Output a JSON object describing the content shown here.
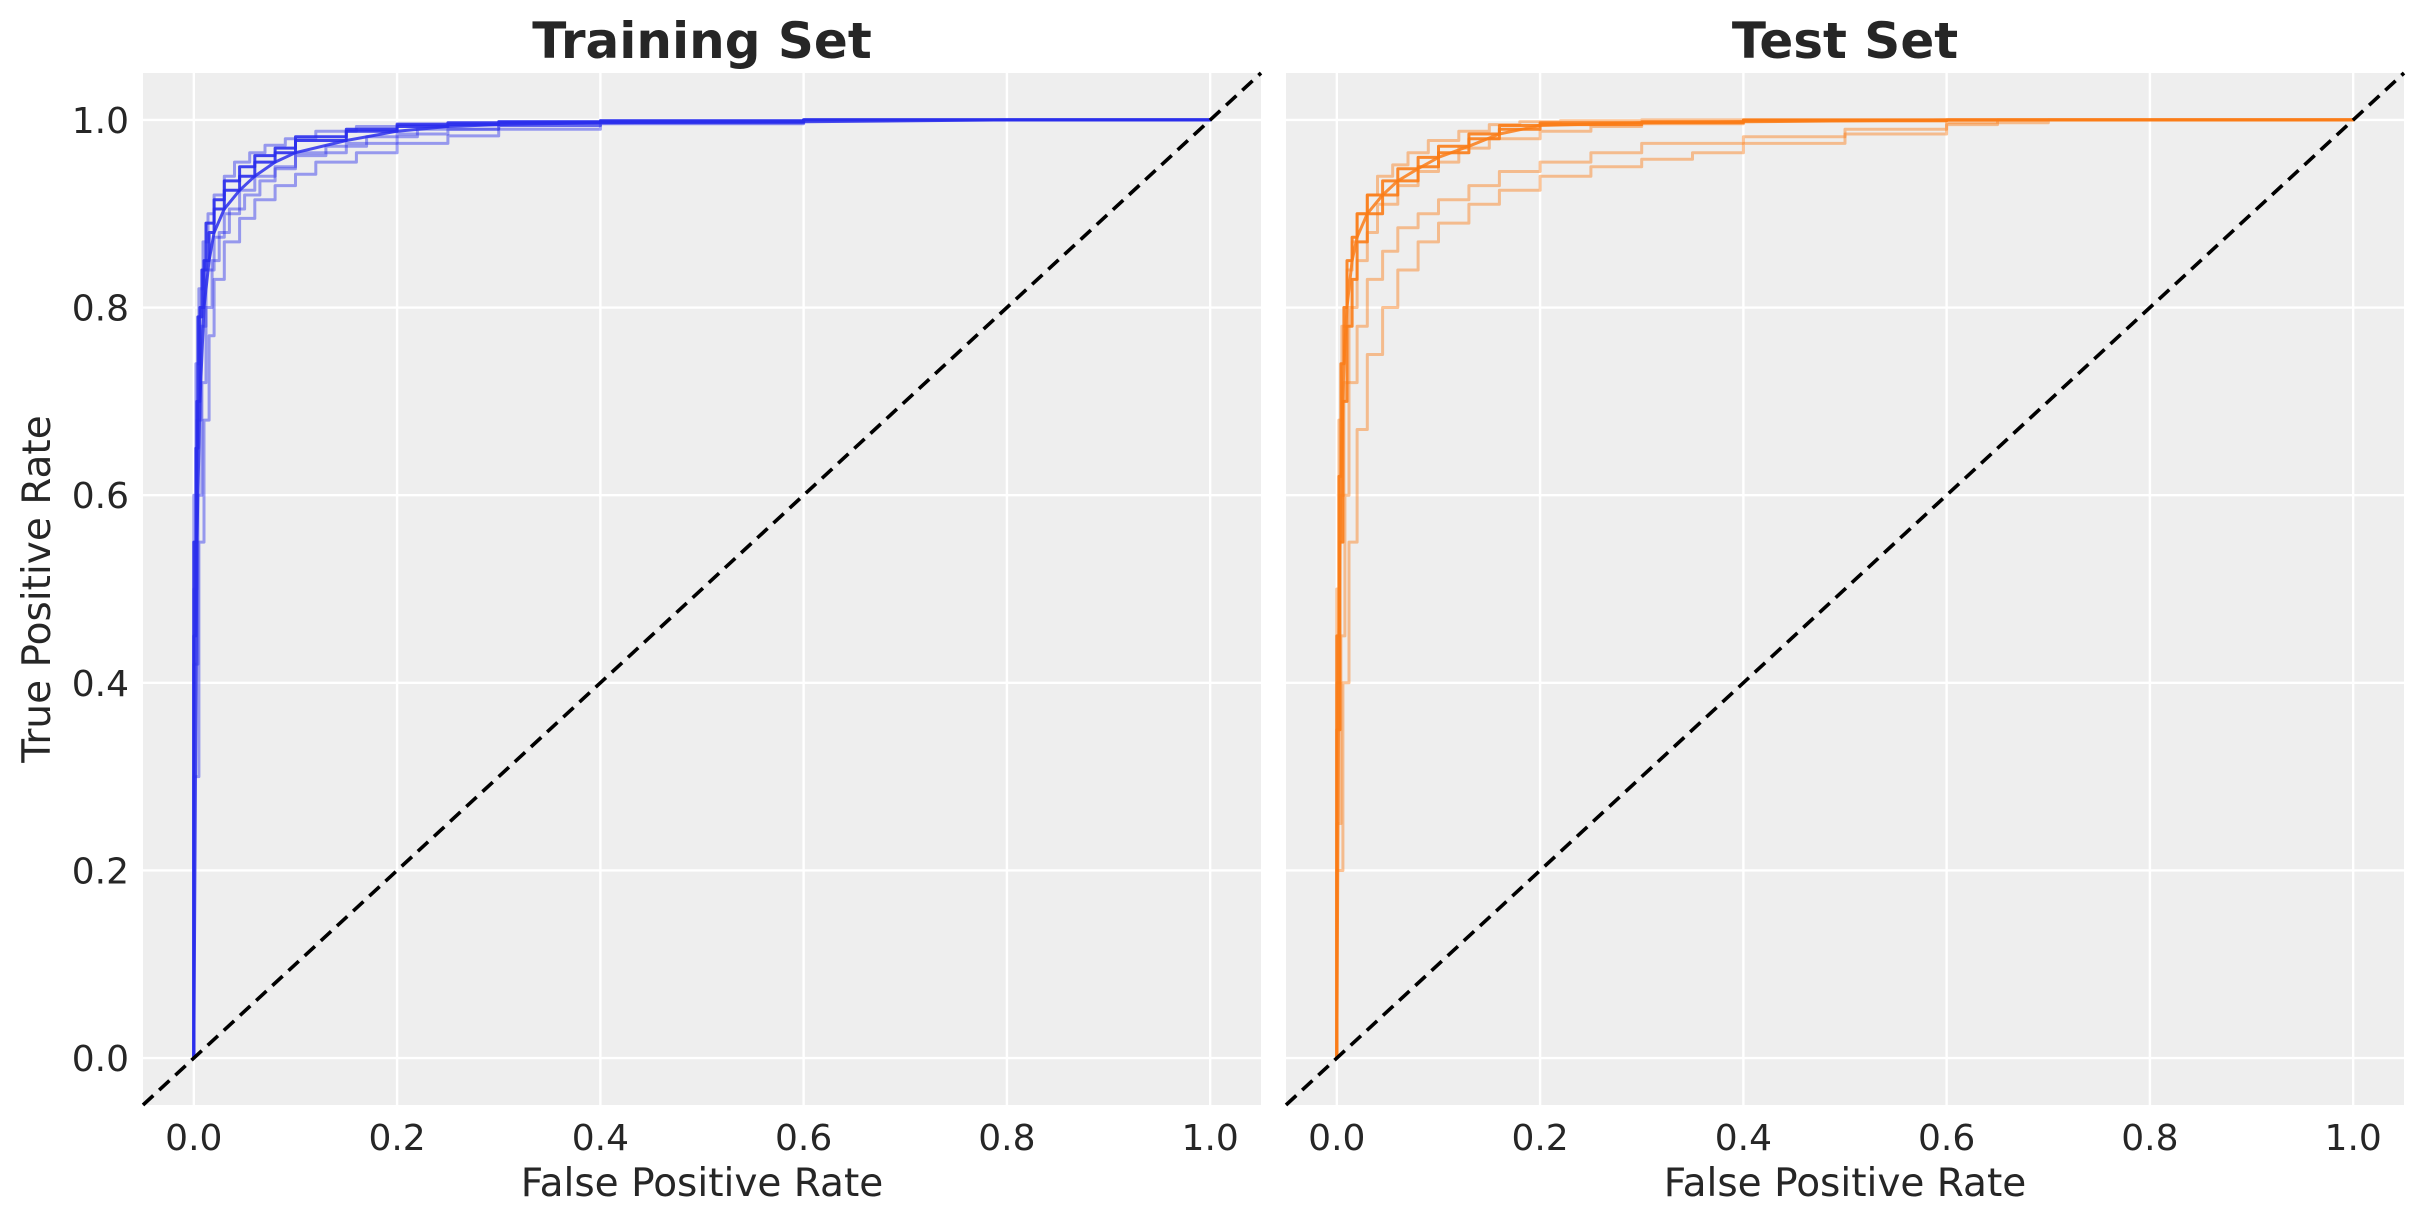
{
  "chart_data": [
    {
      "type": "line",
      "title": "Training Set",
      "xlabel": "False Positive Rate",
      "ylabel": "True Positive Rate",
      "xlim": [
        -0.05,
        1.05
      ],
      "ylim": [
        -0.05,
        1.05
      ],
      "xticks": [
        "0.0",
        "0.2",
        "0.4",
        "0.6",
        "0.8",
        "1.0"
      ],
      "yticks": [
        "0.0",
        "0.2",
        "0.4",
        "0.6",
        "0.8",
        "1.0"
      ],
      "grid": true,
      "color": "#2a2eec",
      "reference_line": {
        "x": [
          -0.05,
          1.05
        ],
        "y": [
          -0.05,
          1.05
        ],
        "style": "dashed",
        "color": "#000000"
      },
      "series": [
        {
          "x": [
            0.0,
            0.003,
            0.006,
            0.01,
            0.015,
            0.02,
            0.03,
            0.045,
            0.06,
            0.08,
            0.1,
            0.15,
            0.2,
            0.25,
            0.3,
            0.4,
            0.6,
            0.8,
            1.0
          ],
          "y": [
            0.0,
            0.55,
            0.7,
            0.8,
            0.85,
            0.88,
            0.905,
            0.925,
            0.94,
            0.955,
            0.965,
            0.978,
            0.988,
            0.993,
            0.995,
            0.997,
            0.998,
            1.0,
            1.0
          ]
        },
        {
          "x": [
            0.0,
            0.002,
            0.004,
            0.008,
            0.012,
            0.02,
            0.03,
            0.045,
            0.06,
            0.08,
            0.1,
            0.15,
            0.2,
            0.25,
            0.3,
            0.4,
            0.6,
            0.8,
            1.0
          ],
          "y": [
            0.0,
            0.45,
            0.65,
            0.79,
            0.84,
            0.89,
            0.915,
            0.935,
            0.95,
            0.962,
            0.97,
            0.982,
            0.99,
            0.995,
            0.997,
            0.998,
            0.999,
            1.0,
            1.0
          ]
        },
        {
          "x": [
            0.0,
            0.004,
            0.008,
            0.012,
            0.018,
            0.025,
            0.035,
            0.05,
            0.065,
            0.08,
            0.1,
            0.15,
            0.2,
            0.25,
            0.3,
            0.4,
            0.6,
            0.8,
            1.0
          ],
          "y": [
            0.0,
            0.42,
            0.6,
            0.72,
            0.8,
            0.85,
            0.88,
            0.905,
            0.92,
            0.935,
            0.948,
            0.965,
            0.975,
            0.985,
            0.99,
            0.994,
            0.997,
            1.0,
            1.0
          ]
        },
        {
          "x": [
            0.0,
            0.003,
            0.007,
            0.012,
            0.02,
            0.03,
            0.045,
            0.06,
            0.08,
            0.1,
            0.13,
            0.17,
            0.22,
            0.3,
            0.4,
            0.6,
            0.8,
            1.0
          ],
          "y": [
            0.0,
            0.5,
            0.68,
            0.78,
            0.84,
            0.875,
            0.9,
            0.925,
            0.94,
            0.95,
            0.962,
            0.972,
            0.982,
            0.99,
            0.994,
            0.997,
            1.0,
            1.0
          ]
        },
        {
          "x": [
            0.0,
            0.002,
            0.005,
            0.009,
            0.014,
            0.02,
            0.03,
            0.04,
            0.055,
            0.07,
            0.09,
            0.12,
            0.16,
            0.2,
            0.3,
            0.4,
            0.6,
            0.8,
            1.0
          ],
          "y": [
            0.0,
            0.6,
            0.74,
            0.82,
            0.87,
            0.9,
            0.92,
            0.94,
            0.955,
            0.965,
            0.973,
            0.98,
            0.988,
            0.993,
            0.996,
            0.998,
            0.999,
            1.0,
            1.0
          ]
        },
        {
          "x": [
            0.0,
            0.005,
            0.01,
            0.015,
            0.02,
            0.03,
            0.045,
            0.06,
            0.08,
            0.1,
            0.12,
            0.16,
            0.2,
            0.25,
            0.3,
            0.4,
            0.6,
            0.8,
            1.0
          ],
          "y": [
            0.0,
            0.3,
            0.55,
            0.68,
            0.77,
            0.83,
            0.87,
            0.895,
            0.915,
            0.93,
            0.942,
            0.955,
            0.965,
            0.975,
            0.983,
            0.99,
            0.996,
            1.0,
            1.0
          ]
        }
      ]
    },
    {
      "type": "line",
      "title": "Test Set",
      "xlabel": "False Positive Rate",
      "ylabel": "",
      "xlim": [
        -0.05,
        1.05
      ],
      "ylim": [
        -0.05,
        1.05
      ],
      "xticks": [
        "0.0",
        "0.2",
        "0.4",
        "0.6",
        "0.8",
        "1.0"
      ],
      "yticks": [],
      "grid": true,
      "color": "#fa7c17",
      "reference_line": {
        "x": [
          -0.05,
          1.05
        ],
        "y": [
          -0.05,
          1.05
        ],
        "style": "dashed",
        "color": "#000000"
      },
      "series": [
        {
          "x": [
            0.0,
            0.002,
            0.004,
            0.007,
            0.01,
            0.015,
            0.02,
            0.03,
            0.045,
            0.06,
            0.08,
            0.1,
            0.13,
            0.16,
            0.2,
            0.3,
            0.4,
            0.6,
            0.8,
            1.0
          ],
          "y": [
            0.0,
            0.45,
            0.62,
            0.74,
            0.8,
            0.85,
            0.875,
            0.9,
            0.92,
            0.935,
            0.948,
            0.96,
            0.972,
            0.985,
            0.994,
            0.997,
            0.998,
            1.0,
            1.0,
            1.0
          ]
        },
        {
          "x": [
            0.0,
            0.003,
            0.006,
            0.01,
            0.015,
            0.02,
            0.03,
            0.045,
            0.06,
            0.08,
            0.1,
            0.13,
            0.16,
            0.2,
            0.3,
            0.4,
            0.6,
            0.8,
            1.0
          ],
          "y": [
            0.0,
            0.35,
            0.55,
            0.7,
            0.78,
            0.83,
            0.87,
            0.9,
            0.92,
            0.935,
            0.95,
            0.965,
            0.98,
            0.99,
            0.995,
            0.997,
            0.999,
            1.0,
            1.0
          ]
        },
        {
          "x": [
            0.0,
            0.004,
            0.008,
            0.012,
            0.02,
            0.03,
            0.045,
            0.06,
            0.08,
            0.1,
            0.13,
            0.16,
            0.2,
            0.25,
            0.3,
            0.4,
            0.5,
            0.6,
            0.7,
            1.0
          ],
          "y": [
            0.0,
            0.25,
            0.45,
            0.6,
            0.72,
            0.78,
            0.83,
            0.86,
            0.885,
            0.9,
            0.915,
            0.93,
            0.945,
            0.955,
            0.965,
            0.975,
            0.982,
            0.99,
            0.997,
            1.0
          ]
        },
        {
          "x": [
            0.0,
            0.003,
            0.007,
            0.012,
            0.02,
            0.03,
            0.04,
            0.06,
            0.08,
            0.1,
            0.12,
            0.15,
            0.2,
            0.25,
            0.3,
            0.4,
            0.6,
            0.8,
            1.0
          ],
          "y": [
            0.0,
            0.4,
            0.6,
            0.72,
            0.8,
            0.85,
            0.88,
            0.91,
            0.93,
            0.945,
            0.955,
            0.97,
            0.98,
            0.988,
            0.993,
            0.996,
            0.999,
            1.0,
            1.0
          ]
        },
        {
          "x": [
            0.0,
            0.002,
            0.005,
            0.01,
            0.015,
            0.02,
            0.03,
            0.04,
            0.055,
            0.07,
            0.09,
            0.12,
            0.15,
            0.18,
            0.22,
            0.3,
            0.4,
            0.6,
            0.8,
            1.0
          ],
          "y": [
            0.0,
            0.5,
            0.68,
            0.78,
            0.84,
            0.87,
            0.9,
            0.92,
            0.94,
            0.952,
            0.965,
            0.978,
            0.988,
            0.995,
            0.998,
            0.999,
            1.0,
            1.0,
            1.0,
            1.0
          ]
        },
        {
          "x": [
            0.0,
            0.006,
            0.012,
            0.02,
            0.03,
            0.045,
            0.06,
            0.08,
            0.1,
            0.13,
            0.16,
            0.2,
            0.25,
            0.3,
            0.35,
            0.4,
            0.5,
            0.6,
            0.65,
            1.0
          ],
          "y": [
            0.0,
            0.2,
            0.4,
            0.55,
            0.67,
            0.75,
            0.8,
            0.84,
            0.87,
            0.89,
            0.91,
            0.925,
            0.94,
            0.95,
            0.958,
            0.965,
            0.975,
            0.985,
            0.995,
            1.0
          ]
        }
      ]
    }
  ]
}
